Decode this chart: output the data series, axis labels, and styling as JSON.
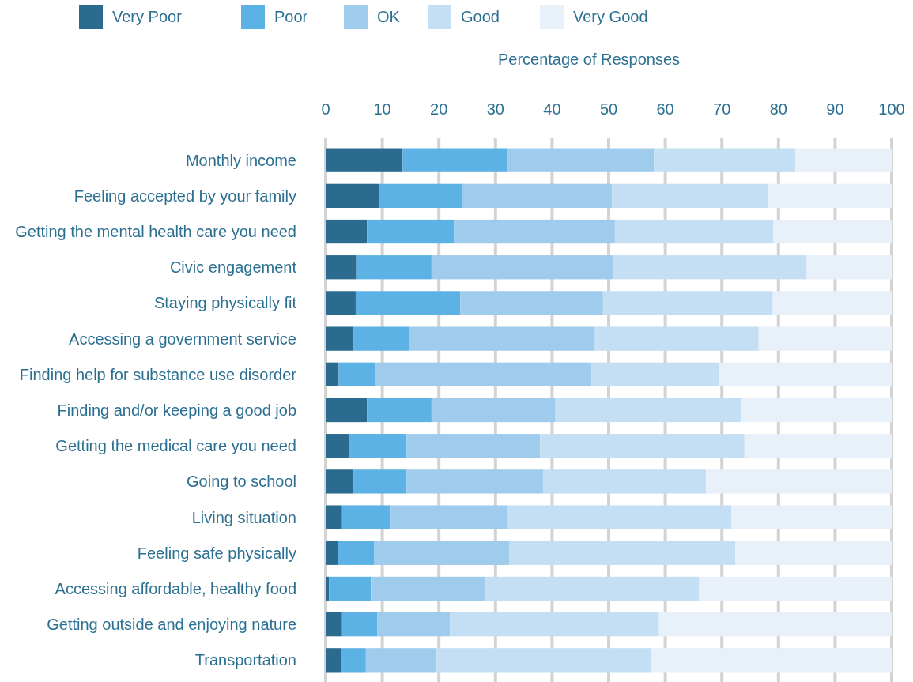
{
  "chart_data": {
    "type": "bar",
    "orientation": "horizontal",
    "stacked": true,
    "xlabel": "Percentage of Responses",
    "legend": "top left",
    "grid": "x",
    "categories": [
      "Monthly income",
      "Feeling accepted by your family",
      "Getting the mental health care you need",
      "Civic engagement",
      "Staying physically fit",
      "Accessing a government service",
      "Finding help for substance use disorder",
      "Finding and/or keeping a good job",
      "Getting the medical care you need",
      "Going to school",
      "Living situation",
      "Feeling safe physically",
      "Accessing affordable, healthy food",
      "Getting outside and enjoying nature",
      "Transportation"
    ],
    "xlim": [
      0,
      100
    ],
    "xticks": [
      0,
      10,
      20,
      30,
      40,
      50,
      60,
      70,
      80,
      90,
      100
    ],
    "series": [
      {
        "name": "Very Poor",
        "color": "#2a6b8f",
        "values": [
          13.6,
          9.5,
          7.3,
          5.4,
          5.3,
          4.9,
          2.3,
          7.3,
          4.1,
          4.9,
          2.9,
          2.1,
          0.6,
          2.9,
          2.7
        ]
      },
      {
        "name": "Poor",
        "color": "#5cb1e5",
        "values": [
          18.6,
          14.6,
          15.4,
          13.3,
          18.5,
          9.8,
          6.5,
          11.4,
          10.2,
          9.4,
          8.6,
          6.5,
          7.4,
          6.2,
          4.4
        ]
      },
      {
        "name": "OK",
        "color": "#9fcbec",
        "values": [
          25.8,
          26.5,
          28.4,
          32.1,
          25.2,
          32.7,
          38.2,
          21.8,
          23.6,
          24.1,
          20.6,
          23.8,
          20.2,
          12.9,
          12.5
        ]
      },
      {
        "name": "Good",
        "color": "#c4dff4",
        "values": [
          25.0,
          27.5,
          28.0,
          34.2,
          30.0,
          29.1,
          22.5,
          33.0,
          36.1,
          28.8,
          39.6,
          40.0,
          37.8,
          36.9,
          37.9
        ]
      },
      {
        "name": "Very Good",
        "color": "#e8f0fa",
        "values": [
          17.0,
          21.9,
          20.9,
          15.0,
          21.0,
          23.5,
          30.5,
          26.5,
          26.0,
          32.8,
          28.3,
          27.6,
          34.0,
          41.1,
          42.5
        ]
      }
    ]
  }
}
